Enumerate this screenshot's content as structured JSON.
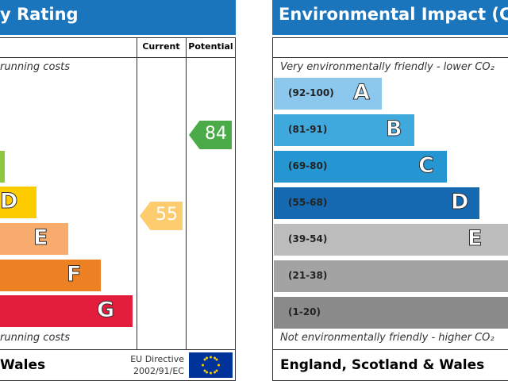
{
  "energy": {
    "title": "y Rating",
    "columns": [
      "Current",
      "Potential"
    ],
    "top_note": "running costs",
    "bottom_note": "running costs",
    "bands": [
      "D",
      "E",
      "F",
      "G"
    ],
    "current": 55,
    "potential": 84,
    "footer": "Wales",
    "directive": [
      "EU Directive",
      "2002/91/EC"
    ]
  },
  "environment": {
    "title": "Environmental Impact (C",
    "top_note": "Very environmentally friendly - lower CO₂",
    "bottom_note": "Not environmentally friendly - higher CO₂",
    "bands": [
      {
        "range": "(92-100)",
        "letter": "A"
      },
      {
        "range": "(81-91)",
        "letter": "B"
      },
      {
        "range": "(69-80)",
        "letter": "C"
      },
      {
        "range": "(55-68)",
        "letter": "D"
      },
      {
        "range": "(39-54)",
        "letter": "E"
      },
      {
        "range": "(21-38)"
      },
      {
        "range": "(1-20)"
      }
    ],
    "footer": "England, Scotland & Wales"
  }
}
